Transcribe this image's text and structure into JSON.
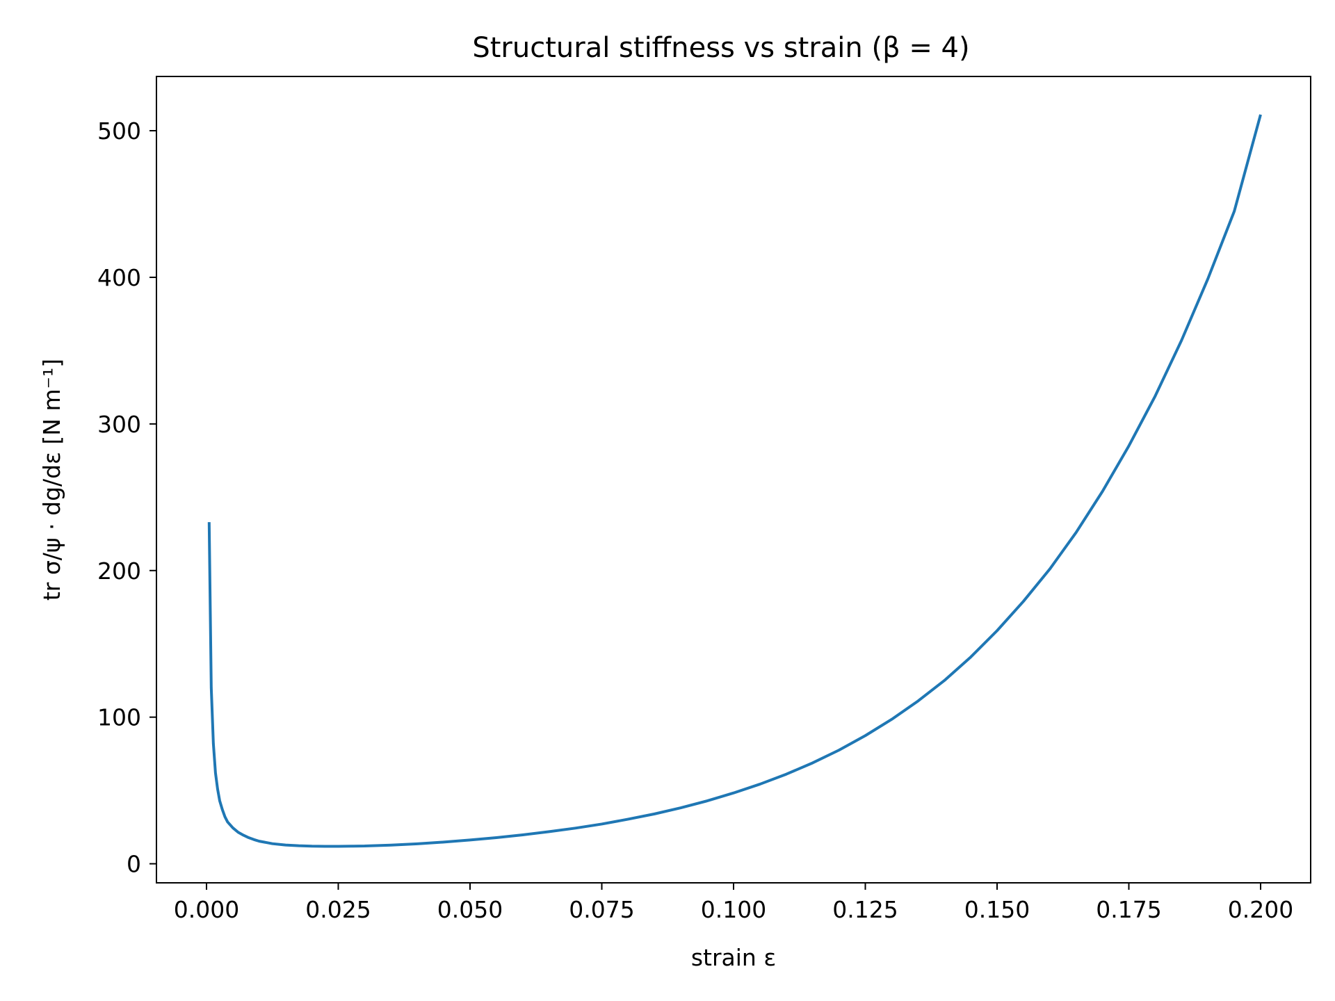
{
  "chart_data": {
    "type": "line",
    "title": "Structural stiffness vs strain  (β = 4)",
    "xlabel": "strain ε",
    "ylabel": "tr σ/ψ · dg/dε  [N m⁻¹]",
    "xlim": [
      -0.0095,
      0.2095
    ],
    "ylim": [
      -13,
      537
    ],
    "grid": false,
    "xticks": [
      0.0,
      0.025,
      0.05,
      0.075,
      0.1,
      0.125,
      0.15,
      0.175,
      0.2
    ],
    "xtick_labels": [
      "0.000",
      "0.025",
      "0.050",
      "0.075",
      "0.100",
      "0.125",
      "0.150",
      "0.175",
      "0.200"
    ],
    "yticks": [
      0,
      100,
      200,
      300,
      400,
      500
    ],
    "ytick_labels": [
      "0",
      "100",
      "200",
      "300",
      "400",
      "500"
    ],
    "series": [
      {
        "color": "#1f77b4",
        "x": [
          0.0005,
          0.0009,
          0.0013,
          0.0017,
          0.0021,
          0.0025,
          0.003,
          0.0035,
          0.004,
          0.005,
          0.006,
          0.007,
          0.008,
          0.009,
          0.01,
          0.0125,
          0.015,
          0.0175,
          0.02,
          0.0225,
          0.025,
          0.0275,
          0.03,
          0.035,
          0.04,
          0.045,
          0.05,
          0.055,
          0.06,
          0.065,
          0.07,
          0.075,
          0.08,
          0.085,
          0.09,
          0.095,
          0.1,
          0.105,
          0.11,
          0.115,
          0.12,
          0.125,
          0.13,
          0.135,
          0.14,
          0.145,
          0.15,
          0.155,
          0.16,
          0.165,
          0.17,
          0.175,
          0.18,
          0.185,
          0.19,
          0.195,
          0.2
        ],
        "y": [
          233,
          120,
          82,
          62,
          51,
          43,
          37,
          32,
          28.5,
          24.5,
          21.5,
          19.5,
          17.8,
          16.5,
          15.4,
          13.7,
          12.8,
          12.3,
          12.0,
          11.9,
          11.9,
          12.0,
          12.1,
          12.7,
          13.6,
          14.8,
          16.2,
          17.8,
          19.7,
          21.9,
          24.3,
          27.1,
          30.4,
          34.0,
          38.2,
          42.9,
          48.3,
          54.3,
          61.1,
          68.8,
          77.5,
          87.4,
          98.5,
          111,
          125,
          141,
          159,
          179,
          201,
          226,
          254,
          285,
          319,
          357,
          399,
          445,
          511
        ]
      }
    ]
  }
}
